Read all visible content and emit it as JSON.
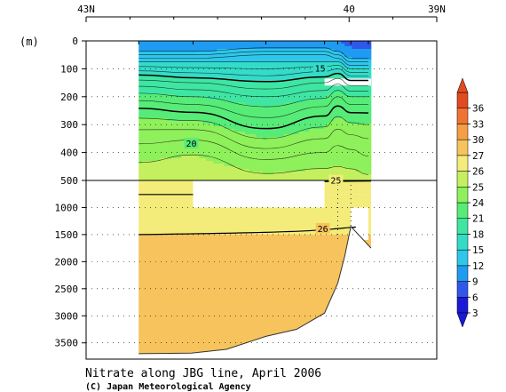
{
  "chart_data": {
    "type": "heatmap",
    "title": "Nitrate along JBG line, April 2006",
    "credit": "(C) Japan Meteorological Agency",
    "y_unit": "(m)",
    "x_axis": {
      "tick_labels": [
        "43N",
        "40",
        "39N"
      ],
      "tick_values": [
        43,
        40,
        39
      ],
      "range": [
        43,
        39
      ]
    },
    "y_axis": {
      "upper_panel": {
        "tick_labels": [
          "0",
          "100",
          "200",
          "300",
          "400",
          "500"
        ],
        "range": [
          0,
          500
        ]
      },
      "lower_panel": {
        "tick_labels": [
          "1000",
          "1500",
          "2000",
          "2500",
          "3000",
          "3500"
        ],
        "range": [
          500,
          3800
        ]
      }
    },
    "colorbar": {
      "levels": [
        3,
        6,
        9,
        12,
        15,
        18,
        21,
        24,
        25,
        26,
        27,
        30,
        33,
        36
      ],
      "level_labels": [
        "3",
        "6",
        "9",
        "12",
        "15",
        "18",
        "21",
        "24",
        "25",
        "26",
        "27",
        "30",
        "33",
        "36"
      ],
      "colors": [
        "#1a1ad6",
        "#2f58ea",
        "#1f9bf2",
        "#2ec7ea",
        "#34dcc8",
        "#3fe5a2",
        "#57eb78",
        "#8ef05a",
        "#c4ef5f",
        "#f3ec7a",
        "#f7c35c",
        "#f59e45",
        "#ef7332",
        "#e24b22"
      ]
    },
    "contour_labels": [
      "15",
      "20",
      "25",
      "26"
    ],
    "section": {
      "lat_range": [
        42.4,
        39.75
      ],
      "stations": [
        42.4,
        41.78,
        40.95,
        40.28,
        40.13,
        39.98,
        39.78
      ],
      "upper_concentration_rows": [
        {
          "depth": 0,
          "values": [
            6,
            6,
            6,
            6,
            6,
            4,
            4
          ]
        },
        {
          "depth": 25,
          "values": [
            8,
            8,
            9,
            9,
            8,
            6,
            6
          ]
        },
        {
          "depth": 50,
          "values": [
            10,
            10,
            11,
            11,
            10,
            8,
            8
          ]
        },
        {
          "depth": 75,
          "values": [
            12,
            12,
            12,
            12,
            12,
            10,
            10
          ]
        },
        {
          "depth": 100,
          "values": [
            13.5,
            13.2,
            13,
            13.5,
            14,
            12,
            12
          ]
        },
        {
          "depth": 125,
          "values": [
            15.2,
            14.6,
            14,
            14.8,
            15.5,
            14,
            14
          ]
        },
        {
          "depth": 150,
          "values": [
            16.5,
            16,
            15.2,
            16,
            16.8,
            15.5,
            15.5
          ]
        },
        {
          "depth": 200,
          "values": [
            18.5,
            18,
            17,
            17.8,
            19,
            18,
            18
          ]
        },
        {
          "depth": 250,
          "values": [
            20.3,
            19.8,
            18.4,
            19.5,
            20.5,
            19.8,
            19.8
          ]
        },
        {
          "depth": 300,
          "values": [
            21.6,
            21.5,
            19.6,
            20.8,
            21.7,
            21.2,
            21
          ]
        },
        {
          "depth": 350,
          "values": [
            22.7,
            22.9,
            21,
            22,
            22.6,
            22.3,
            22
          ]
        },
        {
          "depth": 400,
          "values": [
            23.5,
            23.9,
            22.4,
            23,
            23.4,
            23.2,
            22.8
          ]
        },
        {
          "depth": 450,
          "values": [
            24.2,
            24.5,
            23.6,
            23.9,
            24,
            23.9,
            23.6
          ]
        },
        {
          "depth": 500,
          "values": [
            24.7,
            24.9,
            24.4,
            24.6,
            24.6,
            24.5,
            24.3
          ]
        }
      ],
      "lower_zones": [
        {
          "depth_range": [
            500,
            760
          ],
          "value": 25.5
        },
        {
          "depth_range": [
            760,
            1500
          ],
          "value": 25.8
        },
        {
          "depth_range": [
            1500,
            3800
          ],
          "value": 26.5
        }
      ],
      "blank_regions": [
        {
          "lat_range": [
            40.28,
            39.75
          ],
          "depth_range": [
            135,
            160
          ]
        },
        {
          "lat_range": [
            41.78,
            40.28
          ],
          "depth_range": [
            500,
            1000
          ]
        },
        {
          "lat_range": [
            39.98,
            39.78
          ],
          "depth_range": [
            1000,
            1600
          ]
        }
      ],
      "seafloor": [
        [
          42.4,
          3700
        ],
        [
          41.8,
          3690
        ],
        [
          41.4,
          3620
        ],
        [
          40.95,
          3380
        ],
        [
          40.6,
          3250
        ],
        [
          40.28,
          2950
        ],
        [
          40.13,
          2400
        ],
        [
          40.05,
          1900
        ],
        [
          39.98,
          1350
        ],
        [
          39.75,
          1750
        ]
      ]
    }
  }
}
